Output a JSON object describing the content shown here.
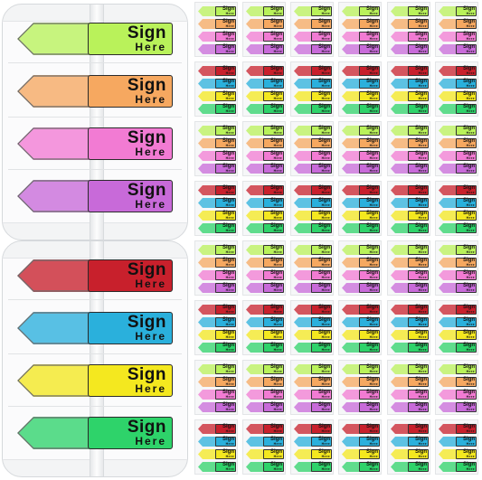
{
  "label": {
    "line1": "Sign",
    "line2": "Here"
  },
  "colors": {
    "lime": "#b9f25a",
    "orange": "#f6a860",
    "pink": "#f27bd3",
    "purple": "#c86ad9",
    "red": "#c8202c",
    "blue": "#2ab0dc",
    "yellow": "#f4e81f",
    "green": "#2ed36a"
  },
  "big_sets": [
    [
      "lime",
      "orange",
      "pink",
      "purple"
    ],
    [
      "red",
      "blue",
      "yellow",
      "green"
    ]
  ],
  "small_sheet_rows": [
    [
      "lime",
      "orange",
      "pink",
      "purple"
    ],
    [
      "red",
      "blue",
      "yellow",
      "green"
    ],
    [
      "lime",
      "orange",
      "pink",
      "purple"
    ],
    [
      "red",
      "blue",
      "yellow",
      "green"
    ],
    [
      "lime",
      "orange",
      "pink",
      "purple"
    ],
    [
      "red",
      "blue",
      "yellow",
      "green"
    ],
    [
      "lime",
      "orange",
      "pink",
      "purple"
    ],
    [
      "red",
      "blue",
      "yellow",
      "green"
    ]
  ],
  "small_columns": 6
}
